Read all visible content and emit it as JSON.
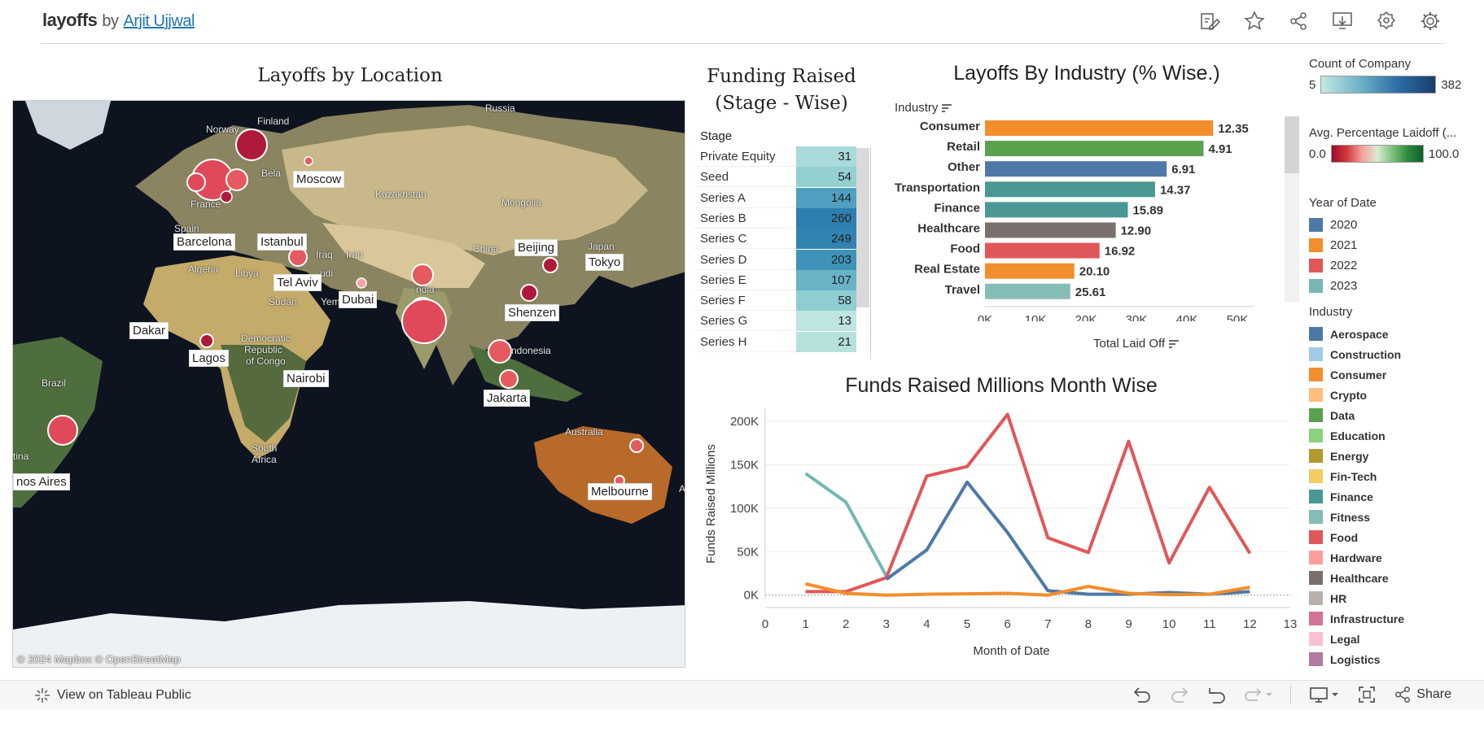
{
  "header": {
    "logo": "layoffs",
    "by": "by",
    "author": "Arjit Ujjwal",
    "icons": [
      "edit-icon",
      "star-icon",
      "share-icon",
      "download-icon",
      "badge-icon",
      "gear-icon"
    ]
  },
  "map": {
    "title": "Layoffs by Location",
    "attribution": "© 2024 Mapbox  © OpenStreetMap",
    "cities": [
      "Moscow",
      "Istanbul",
      "Barcelona",
      "Tel Aviv",
      "Dubai",
      "Beijing",
      "Tokyo",
      "Shenzen",
      "Dakar",
      "Lagos",
      "Nairobi",
      "Jakarta",
      "Melbourne",
      "nos Aires"
    ],
    "regions": [
      "Russia",
      "Finland",
      "Norway",
      "Bela",
      "France",
      "Spain",
      "Kazakhstan",
      "Mongolia",
      "China",
      "Japan",
      "Iraq",
      "Iran",
      "Algeria",
      "Libya",
      "udi",
      "Sudan",
      "Yemen",
      "ndia",
      "Democratic",
      "Republic",
      "of Congo",
      "ndonesia",
      "Brazil",
      "Australia",
      "South",
      "Africa",
      "tina",
      "A"
    ]
  },
  "stage": {
    "title_line1": "Funding Raised",
    "title_line2": "(Stage - Wise)",
    "column": "Stage",
    "rows": [
      {
        "label": "Private Equity",
        "value": "31",
        "color": "#a9dbda"
      },
      {
        "label": "Seed",
        "value": "54",
        "color": "#94d0d2"
      },
      {
        "label": "Series A",
        "value": "144",
        "color": "#4f9fc0"
      },
      {
        "label": "Series B",
        "value": "260",
        "color": "#2e7fb0"
      },
      {
        "label": "Series C",
        "value": "249",
        "color": "#3383b2"
      },
      {
        "label": "Series D",
        "value": "203",
        "color": "#3f93b9"
      },
      {
        "label": "Series E",
        "value": "107",
        "color": "#6ab3c7"
      },
      {
        "label": "Series F",
        "value": "58",
        "color": "#8fcdd1"
      },
      {
        "label": "Series G",
        "value": "13",
        "color": "#bfe5e0"
      },
      {
        "label": "Series H",
        "value": "21",
        "color": "#b6e1dd"
      }
    ]
  },
  "industry_chart": {
    "title": "Layoffs By Industry (% Wise.)",
    "xlabel": "Total Laid Off",
    "ylabel": "Industry",
    "ticks": [
      "0K",
      "10K",
      "20K",
      "30K",
      "40K",
      "50K"
    ]
  },
  "line_chart": {
    "title": "Funds Raised Millions Month Wise",
    "xlabel": "Month of Date",
    "ylabel": "Funds Raised Millions",
    "yticks": [
      "0K",
      "50K",
      "100K",
      "150K",
      "200K"
    ],
    "xticks": [
      "0",
      "1",
      "2",
      "3",
      "4",
      "5",
      "6",
      "7",
      "8",
      "9",
      "10",
      "11",
      "12",
      "13"
    ]
  },
  "chart_data": [
    {
      "type": "bar",
      "title": "Layoffs By Industry (% Wise.)",
      "xlabel": "Total Laid Off",
      "ylabel": "Industry",
      "xlim": [
        0,
        50000
      ],
      "categories": [
        "Consumer",
        "Retail",
        "Other",
        "Transportation",
        "Finance",
        "Healthcare",
        "Food",
        "Real Estate",
        "Travel"
      ],
      "values": [
        45200,
        43300,
        36000,
        33700,
        28300,
        25900,
        22700,
        17700,
        16900
      ],
      "labels": [
        "12.35",
        "4.91",
        "6.91",
        "14.37",
        "15.89",
        "12.90",
        "16.92",
        "20.10",
        "25.61"
      ],
      "colors": [
        "#f28e2b",
        "#59a14f",
        "#4e79a7",
        "#499894",
        "#499894",
        "#79706e",
        "#e15759",
        "#f28e2b",
        "#86bcb6"
      ]
    },
    {
      "type": "line",
      "title": "Funds Raised Millions Month Wise",
      "xlabel": "Month of Date",
      "ylabel": "Funds Raised Millions",
      "xlim": [
        0,
        13
      ],
      "ylim": [
        -5000,
        215000
      ],
      "x": [
        1,
        2,
        3,
        4,
        5,
        6,
        7,
        8,
        9,
        10,
        11,
        12
      ],
      "series": [
        {
          "color": "#76b7b2",
          "values": [
            140000,
            107000,
            22000,
            null,
            null,
            null,
            null,
            null,
            null,
            null,
            null,
            null
          ]
        },
        {
          "color": "#e15759",
          "values": [
            4000,
            4000,
            20000,
            137000,
            148000,
            208000,
            66000,
            49000,
            177000,
            37000,
            124000,
            48000
          ]
        },
        {
          "color": "#4e79a7",
          "values": [
            null,
            null,
            18000,
            52000,
            130000,
            72000,
            5000,
            1000,
            1000,
            3000,
            1000,
            4000
          ]
        },
        {
          "color": "#f28e2b",
          "values": [
            13000,
            2000,
            0,
            1000,
            1500,
            2000,
            0,
            10000,
            2000,
            500,
            1000,
            9000
          ]
        }
      ]
    }
  ],
  "legends": {
    "count": {
      "title": "Count of Company",
      "min": "5",
      "max": "382"
    },
    "pct": {
      "title": "Avg. Percentage Laidoff (...",
      "min": "0.0",
      "max": "100.0"
    },
    "year": {
      "title": "Year of Date",
      "items": [
        {
          "label": "2020",
          "color": "#4e79a7"
        },
        {
          "label": "2021",
          "color": "#f28e2b"
        },
        {
          "label": "2022",
          "color": "#e15759"
        },
        {
          "label": "2023",
          "color": "#76b7b2"
        }
      ]
    },
    "industry": {
      "title": "Industry",
      "items": [
        {
          "label": "Aerospace",
          "color": "#4e79a7"
        },
        {
          "label": "Construction",
          "color": "#a0cbe8"
        },
        {
          "label": "Consumer",
          "color": "#f28e2b"
        },
        {
          "label": "Crypto",
          "color": "#ffbe7d"
        },
        {
          "label": "Data",
          "color": "#59a14f"
        },
        {
          "label": "Education",
          "color": "#8cd17d"
        },
        {
          "label": "Energy",
          "color": "#b6992d"
        },
        {
          "label": "Fin-Tech",
          "color": "#f1ce63"
        },
        {
          "label": "Finance",
          "color": "#499894"
        },
        {
          "label": "Fitness",
          "color": "#86bcb6"
        },
        {
          "label": "Food",
          "color": "#e15759"
        },
        {
          "label": "Hardware",
          "color": "#ff9d9a"
        },
        {
          "label": "Healthcare",
          "color": "#79706e"
        },
        {
          "label": "HR",
          "color": "#bab0ac"
        },
        {
          "label": "Infrastructure",
          "color": "#d37295"
        },
        {
          "label": "Legal",
          "color": "#fabfd2"
        },
        {
          "label": "Logistics",
          "color": "#b07aa1"
        }
      ]
    }
  },
  "footer": {
    "view_label": "View on Tableau Public",
    "share_label": "Share"
  }
}
